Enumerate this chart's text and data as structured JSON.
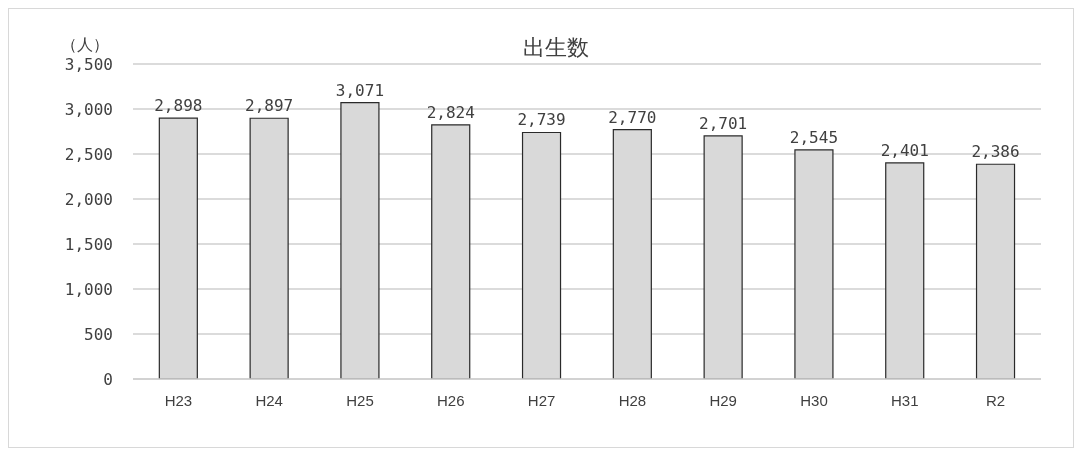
{
  "chart_data": {
    "type": "bar",
    "title": "出生数",
    "ylabel": "（人）",
    "categories": [
      "H23",
      "H24",
      "H25",
      "H26",
      "H27",
      "H28",
      "H29",
      "H30",
      "H31",
      "R2"
    ],
    "values": [
      2898,
      2897,
      3071,
      2824,
      2739,
      2770,
      2701,
      2545,
      2401,
      2386
    ],
    "value_labels": [
      "2,898",
      "2,897",
      "3,071",
      "2,824",
      "2,739",
      "2,770",
      "2,701",
      "2,545",
      "2,401",
      "2,386"
    ],
    "color": "#d9d9d9",
    "ylim": [
      0,
      3500
    ],
    "yticks": [
      0,
      500,
      {
        "value": 1000,
        "label": "1,000"
      },
      {
        "value": 1500,
        "label": "1,500"
      },
      {
        "value": 2000,
        "label": "2,000"
      },
      {
        "value": 2500,
        "label": "2,500"
      },
      {
        "value": 3000,
        "label": "3,000"
      },
      {
        "value": 3500,
        "label": "3,500"
      }
    ],
    "grid": "y"
  }
}
